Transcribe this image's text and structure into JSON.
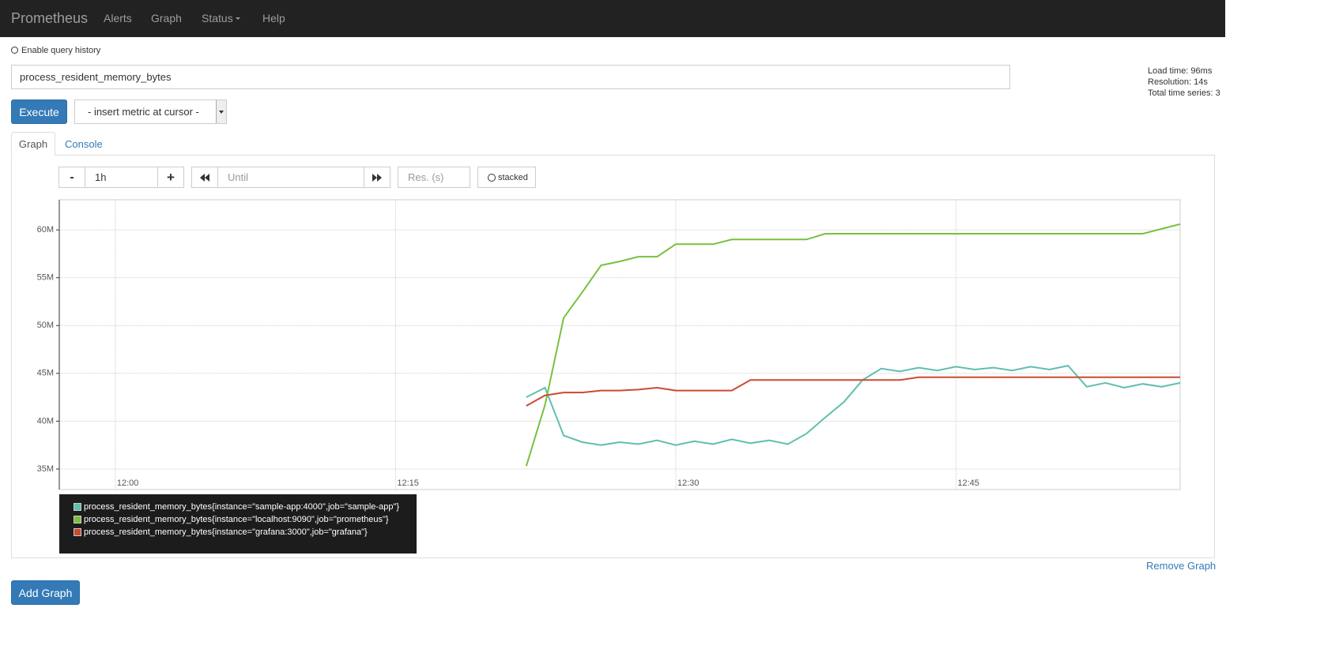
{
  "navbar": {
    "brand": "Prometheus",
    "links": [
      "Alerts",
      "Graph",
      "Status",
      "Help"
    ]
  },
  "query_history_label": "Enable query history",
  "expression": "process_resident_memory_bytes",
  "execute": "Execute",
  "metric_select": "- insert metric at cursor -",
  "stats": [
    "Load time: 96ms",
    "Resolution: 14s",
    "Total time series: 3"
  ],
  "tabs": [
    "Graph",
    "Console"
  ],
  "controls": {
    "minus": "-",
    "range": "1h",
    "plus": "+",
    "until": "Until",
    "resolution": "Res. (s)",
    "stacked": "stacked"
  },
  "chart_data": {
    "type": "line",
    "x": [
      "12:22",
      "12:23",
      "12:24",
      "12:25",
      "12:26",
      "12:27",
      "12:28",
      "12:29",
      "12:30",
      "12:31",
      "12:32",
      "12:33",
      "12:34",
      "12:35",
      "12:36",
      "12:37",
      "12:38",
      "12:39",
      "12:40",
      "12:41",
      "12:42",
      "12:43",
      "12:44",
      "12:45",
      "12:46",
      "12:47",
      "12:48",
      "12:49",
      "12:50",
      "12:51",
      "12:52",
      "12:53",
      "12:54",
      "12:55",
      "12:56",
      "12:57"
    ],
    "xlim": [
      "11:57",
      "12:57"
    ],
    "xticks": [
      "12:00",
      "12:15",
      "12:30",
      "12:45"
    ],
    "ylim": [
      32850000,
      63150000
    ],
    "yticks": [
      {
        "value": 35000000,
        "label": "35M"
      },
      {
        "value": 40000000,
        "label": "40M"
      },
      {
        "value": 45000000,
        "label": "45M"
      },
      {
        "value": 50000000,
        "label": "50M"
      },
      {
        "value": 55000000,
        "label": "55M"
      },
      {
        "value": 60000000,
        "label": "60M"
      }
    ],
    "grid": true,
    "series": [
      {
        "name": "process_resident_memory_bytes{instance=\"sample-app:4000\",job=\"sample-app\"}",
        "color": "#5fbfae",
        "values": [
          42500000,
          43500000,
          38500000,
          37800000,
          37500000,
          37800000,
          37600000,
          38000000,
          37500000,
          37900000,
          37600000,
          38100000,
          37700000,
          38000000,
          37600000,
          38700000,
          40400000,
          42000000,
          44300000,
          45500000,
          45200000,
          45600000,
          45300000,
          45700000,
          45400000,
          45600000,
          45300000,
          45700000,
          45400000,
          45800000,
          43600000,
          44000000,
          43500000,
          43900000,
          43600000,
          44000000
        ]
      },
      {
        "name": "process_resident_memory_bytes{instance=\"localhost:9090\",job=\"prometheus\"}",
        "color": "#78c040",
        "values": [
          35300000,
          41700000,
          50800000,
          53500000,
          56300000,
          56700000,
          57200000,
          57200000,
          58500000,
          58500000,
          58500000,
          59000000,
          59000000,
          59000000,
          59000000,
          59000000,
          59600000,
          59600000,
          59600000,
          59600000,
          59600000,
          59600000,
          59600000,
          59600000,
          59600000,
          59600000,
          59600000,
          59600000,
          59600000,
          59600000,
          59600000,
          59600000,
          59600000,
          59600000,
          60100000,
          60600000
        ]
      },
      {
        "name": "process_resident_memory_bytes{instance=\"grafana:3000\",job=\"grafana\"}",
        "color": "#cc4a30",
        "values": [
          41600000,
          42700000,
          43000000,
          43000000,
          43200000,
          43200000,
          43300000,
          43500000,
          43200000,
          43200000,
          43200000,
          43200000,
          44300000,
          44300000,
          44300000,
          44300000,
          44300000,
          44300000,
          44300000,
          44300000,
          44300000,
          44600000,
          44600000,
          44600000,
          44600000,
          44600000,
          44600000,
          44600000,
          44600000,
          44600000,
          44600000,
          44600000,
          44600000,
          44600000,
          44600000,
          44600000
        ]
      }
    ]
  },
  "remove_graph": "Remove Graph",
  "add_graph": "Add Graph"
}
